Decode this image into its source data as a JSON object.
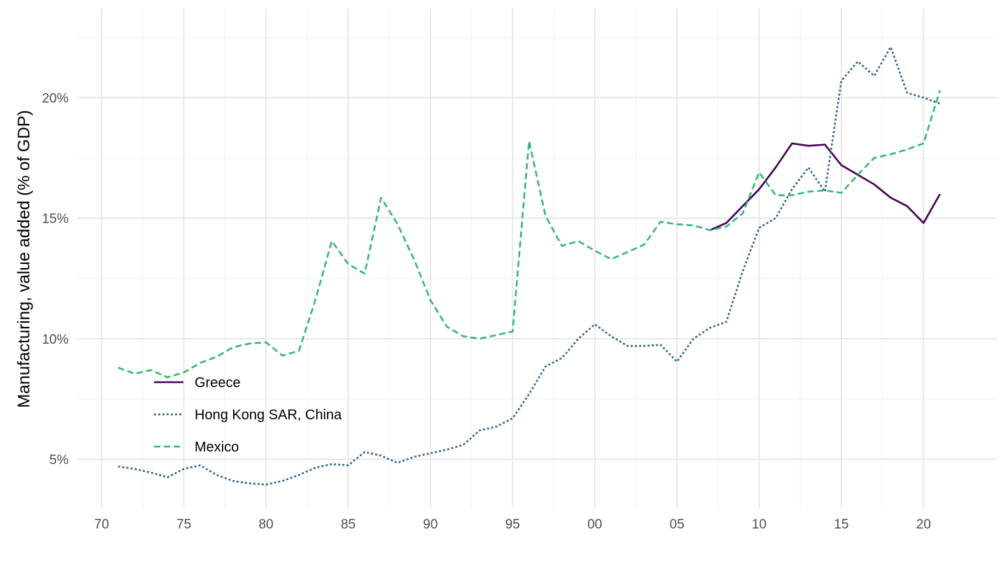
{
  "chart_data": {
    "type": "line",
    "title": "",
    "xlabel": "",
    "ylabel": "Manufacturing, value added (% of GDP)",
    "xlim": [
      1968.5,
      2024.5
    ],
    "ylim": [
      3.0,
      23.7
    ],
    "x_ticks": [
      1970,
      1975,
      1980,
      1985,
      1990,
      1995,
      2000,
      2005,
      2010,
      2015,
      2020
    ],
    "x_tick_labels": [
      "70",
      "75",
      "80",
      "85",
      "90",
      "95",
      "00",
      "05",
      "10",
      "15",
      "20"
    ],
    "y_ticks": [
      5,
      10,
      15,
      20
    ],
    "y_tick_labels": [
      "5%",
      "10%",
      "15%",
      "20%"
    ],
    "grid": true,
    "legend_position": "bottom-left-inside",
    "series": [
      {
        "name": "Greece",
        "color": "#440154",
        "dash": "solid",
        "x": [
          2007,
          2008,
          2009,
          2010,
          2011,
          2012,
          2013,
          2014,
          2015,
          2016,
          2017,
          2018,
          2019,
          2020,
          2021
        ],
        "values": [
          14.5,
          14.8,
          15.5,
          16.2,
          17.1,
          18.1,
          18.0,
          18.05,
          17.2,
          16.8,
          16.4,
          15.85,
          15.5,
          14.8,
          16.0
        ]
      },
      {
        "name": "Hong Kong SAR, China",
        "color": "#31688E",
        "dash": "dotted",
        "x": [
          1971,
          1972,
          1973,
          1974,
          1975,
          1976,
          1977,
          1978,
          1979,
          1980,
          1981,
          1982,
          1983,
          1984,
          1985,
          1986,
          1987,
          1988,
          1989,
          1990,
          1991,
          1992,
          1993,
          1994,
          1995,
          1996,
          1997,
          1998,
          1999,
          2000,
          2001,
          2002,
          2003,
          2004,
          2005,
          2006,
          2007,
          2008,
          2009,
          2010,
          2011,
          2012,
          2013,
          2014,
          2015,
          2016,
          2017,
          2018,
          2019,
          2020,
          2021
        ],
        "values": [
          4.7,
          4.6,
          4.45,
          4.25,
          4.6,
          4.75,
          4.35,
          4.1,
          4.0,
          3.95,
          4.1,
          4.35,
          4.65,
          4.8,
          4.75,
          5.3,
          5.15,
          4.85,
          5.1,
          5.25,
          5.4,
          5.6,
          6.2,
          6.35,
          6.7,
          7.7,
          8.85,
          9.2,
          10.0,
          10.6,
          10.1,
          9.7,
          9.7,
          9.75,
          9.05,
          10.0,
          10.45,
          10.7,
          12.8,
          14.6,
          15.0,
          16.2,
          17.1,
          16.1,
          20.7,
          21.5,
          20.9,
          22.1,
          20.2,
          20.0,
          19.75
        ]
      },
      {
        "name": "Mexico",
        "color": "#35B779",
        "dash": "dashed",
        "x": [
          1971,
          1972,
          1973,
          1974,
          1975,
          1976,
          1977,
          1978,
          1979,
          1980,
          1981,
          1982,
          1983,
          1984,
          1985,
          1986,
          1987,
          1988,
          1989,
          1990,
          1991,
          1992,
          1993,
          1994,
          1995,
          1996,
          1997,
          1998,
          1999,
          2000,
          2001,
          2002,
          2003,
          2004,
          2005,
          2006,
          2007,
          2008,
          2009,
          2010,
          2011,
          2012,
          2013,
          2014,
          2015,
          2016,
          2017,
          2018,
          2019,
          2020,
          2021
        ],
        "values": [
          8.8,
          8.55,
          8.7,
          8.4,
          8.6,
          9.0,
          9.25,
          9.65,
          9.8,
          9.85,
          9.3,
          9.5,
          11.6,
          14.05,
          13.1,
          12.7,
          15.85,
          14.75,
          13.3,
          11.6,
          10.5,
          10.1,
          10.0,
          10.15,
          10.3,
          18.2,
          15.1,
          13.85,
          14.05,
          13.65,
          13.3,
          13.6,
          13.9,
          14.85,
          14.75,
          14.7,
          14.5,
          14.65,
          15.2,
          16.9,
          15.95,
          15.95,
          16.1,
          16.15,
          16.05,
          16.8,
          17.5,
          17.65,
          17.85,
          18.1,
          20.3
        ]
      }
    ]
  }
}
